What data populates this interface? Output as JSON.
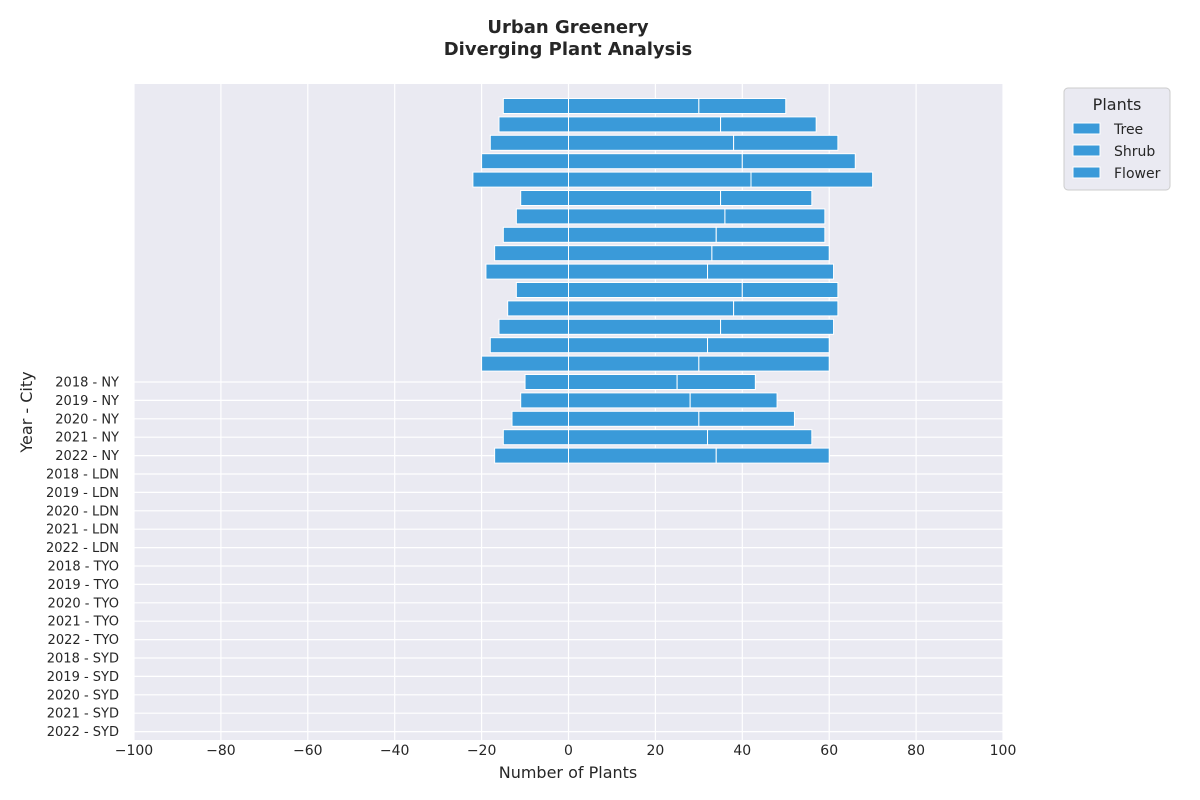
{
  "chart_data": {
    "type": "bar",
    "orientation": "horizontal",
    "title_line1": "Urban Greenery",
    "title_line2": "Diverging Plant Analysis",
    "xlabel": "Number of Plants",
    "ylabel": "Year - City",
    "xlim": [
      -100,
      100
    ],
    "xticks": [
      -100,
      -80,
      -60,
      -40,
      -20,
      0,
      20,
      40,
      60,
      80,
      100
    ],
    "xtick_labels": [
      "−100",
      "−80",
      "−60",
      "−40",
      "−20",
      "0",
      "20",
      "40",
      "60",
      "80",
      "100"
    ],
    "grid": true,
    "legend": {
      "title": "Plants",
      "placement": "upper-right-outside"
    },
    "colors": {
      "bar": "#3a9ad9",
      "background": "#eaeaf2",
      "grid": "#ffffff",
      "edge": "#ffffff"
    },
    "categories": [
      "2018 - NY",
      "2019 - NY",
      "2020 - NY",
      "2021 - NY",
      "2022 - NY",
      "2018 - LDN",
      "2019 - LDN",
      "2020 - LDN",
      "2021 - LDN",
      "2022 - LDN",
      "2018 - TYO",
      "2019 - TYO",
      "2020 - TYO",
      "2021 - TYO",
      "2022 - TYO",
      "2018 - SYD",
      "2019 - SYD",
      "2020 - SYD",
      "2021 - SYD",
      "2022 - SYD"
    ],
    "series": [
      {
        "name": "Tree",
        "values": [
          -15,
          -16,
          -18,
          -20,
          -22,
          -11,
          -12,
          -15,
          -17,
          -19,
          -12,
          -14,
          -16,
          -18,
          -20,
          -10,
          -11,
          -13,
          -15,
          -17
        ]
      },
      {
        "name": "Shrub",
        "values": [
          30,
          35,
          38,
          40,
          42,
          35,
          36,
          34,
          33,
          32,
          40,
          38,
          35,
          32,
          30,
          25,
          28,
          30,
          32,
          34
        ]
      },
      {
        "name": "Flower",
        "values": [
          20,
          22,
          24,
          26,
          28,
          21,
          23,
          25,
          27,
          29,
          22,
          24,
          26,
          28,
          30,
          18,
          20,
          22,
          24,
          26
        ]
      }
    ]
  }
}
